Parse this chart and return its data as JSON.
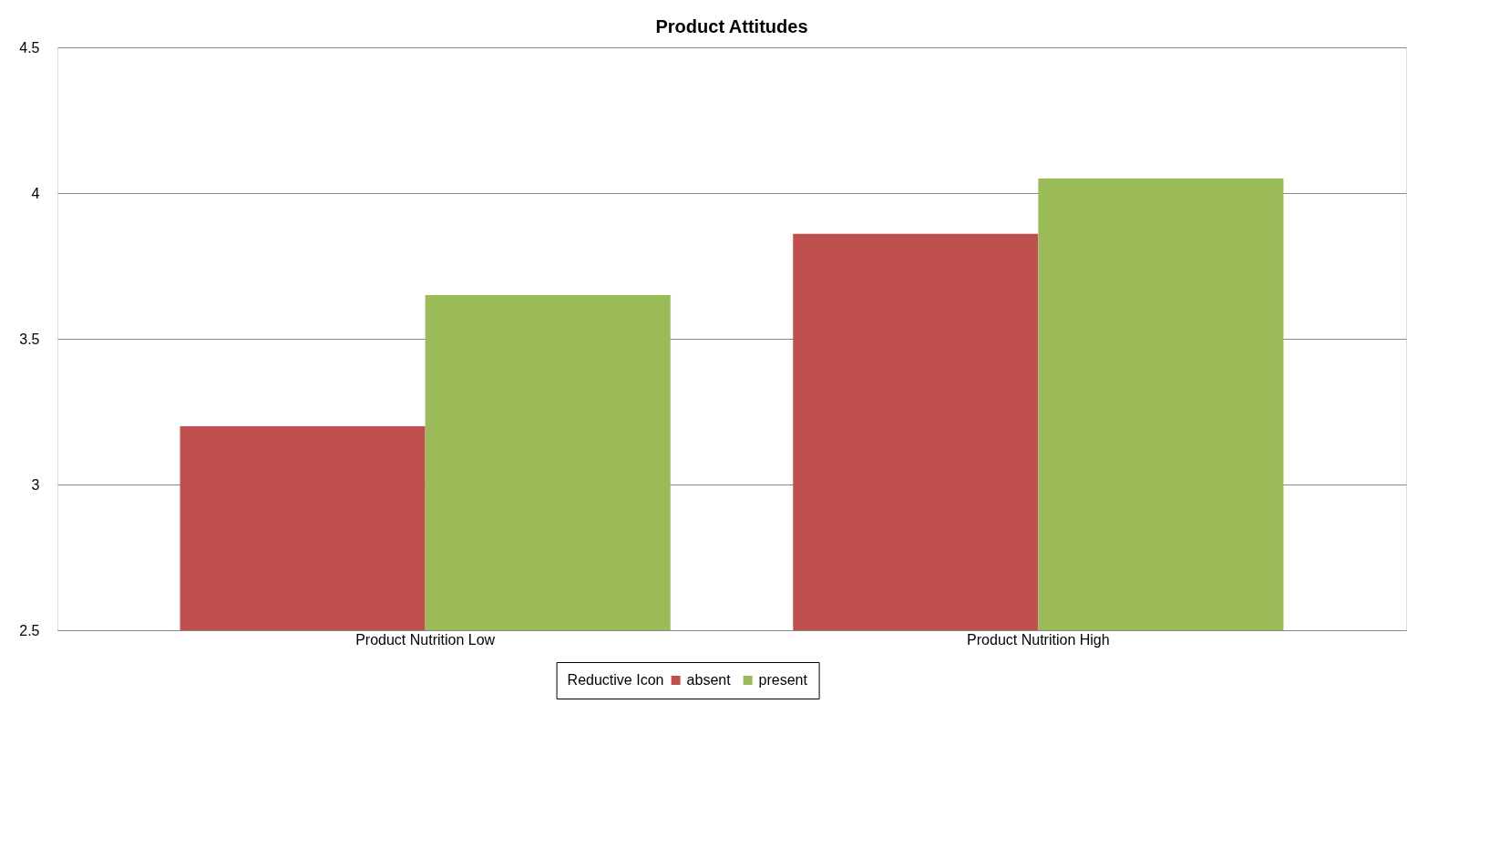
{
  "chart_data": {
    "type": "bar",
    "title": "Product Attitudes",
    "categories": [
      "Product Nutrition Low",
      "Product Nutrition High"
    ],
    "series": [
      {
        "name": "absent",
        "color": "#c0504d",
        "values": [
          3.2,
          3.86
        ]
      },
      {
        "name": "present",
        "color": "#9bbb59",
        "values": [
          3.65,
          4.05
        ]
      }
    ],
    "legend_title": "Reductive Icon",
    "legend": "bottom",
    "ylim": [
      2.5,
      4.5
    ],
    "yticks": [
      2.5,
      3,
      3.5,
      4,
      4.5
    ],
    "grid": "y"
  }
}
